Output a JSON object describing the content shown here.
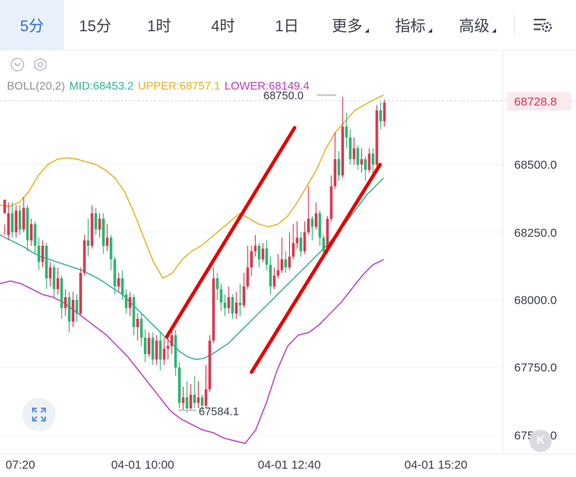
{
  "toolbar": {
    "tabs": [
      {
        "label": "5分",
        "active": true
      },
      {
        "label": "15分",
        "active": false
      },
      {
        "label": "1时",
        "active": false
      },
      {
        "label": "4时",
        "active": false
      },
      {
        "label": "1日",
        "active": false
      }
    ],
    "more_label": "更多",
    "indicator_label": "指标",
    "advanced_label": "高级",
    "settings_icon": "chart-settings-icon"
  },
  "indicator": {
    "name": "BOLL(20,2)",
    "mid": "MID:68453.2",
    "upper": "UPPER:68757.1",
    "lower": "LOWER:68149.4"
  },
  "price_axis": {
    "ticks": [
      "68500.0",
      "68250.0",
      "68000.0",
      "67750.0",
      "67500.0"
    ],
    "current_price": "68728.8"
  },
  "time_axis": {
    "labels": [
      "07:20",
      "04-01 10:00",
      "04-01 12:40",
      "04-01 15:20"
    ]
  },
  "annotations": {
    "high": "68750.0",
    "low": "67584.1"
  },
  "colors": {
    "accent": "#2d6fe0",
    "up": "#e0364f",
    "down": "#2bb673",
    "mid": "#2fb59a",
    "upper": "#e8b21f",
    "lower": "#c23ac4",
    "current_price": "#e0364f",
    "trend_lines": "#e60000"
  },
  "chart_data": {
    "type": "candlestick",
    "title": "",
    "interval": "5分",
    "ylim": [
      67450,
      68800
    ],
    "ticks": [
      67500,
      67750,
      68000,
      68250,
      68500
    ],
    "last_price": 68728.8,
    "high_marker": 68750.0,
    "low_marker": 67584.1,
    "x_labels": [
      "07:20",
      "04-01 10:00",
      "04-01 12:40",
      "04-01 15:20"
    ],
    "candles": [
      [
        68320,
        68370,
        68280,
        68240
      ],
      [
        68240,
        68320,
        68360,
        68220
      ],
      [
        68320,
        68250,
        68360,
        68230
      ],
      [
        68250,
        68330,
        68350,
        68230
      ],
      [
        68330,
        68260,
        68350,
        68240
      ],
      [
        68260,
        68340,
        68380,
        68250
      ],
      [
        68340,
        68220,
        68350,
        68180
      ],
      [
        68220,
        68280,
        68300,
        68200
      ],
      [
        68280,
        68200,
        68290,
        68170
      ],
      [
        68200,
        68140,
        68230,
        68110
      ],
      [
        68140,
        68200,
        68220,
        68120
      ],
      [
        68200,
        68080,
        68210,
        68040
      ],
      [
        68080,
        68120,
        68140,
        68050
      ],
      [
        68120,
        68040,
        68130,
        68010
      ],
      [
        68040,
        68080,
        68120,
        68020
      ],
      [
        68080,
        67970,
        68090,
        67930
      ],
      [
        67970,
        68010,
        68040,
        67940
      ],
      [
        68010,
        67920,
        68030,
        67880
      ],
      [
        67920,
        68000,
        68030,
        67900
      ],
      [
        68000,
        67950,
        68020,
        67920
      ],
      [
        67950,
        68100,
        68120,
        67940
      ],
      [
        68100,
        68220,
        68240,
        68090
      ],
      [
        68220,
        68200,
        68300,
        68160
      ],
      [
        68200,
        68320,
        68350,
        68190
      ],
      [
        68320,
        68260,
        68340,
        68240
      ],
      [
        68260,
        68300,
        68320,
        68230
      ],
      [
        68300,
        68200,
        68320,
        68170
      ],
      [
        68200,
        68230,
        68280,
        68180
      ],
      [
        68230,
        68150,
        68240,
        68110
      ],
      [
        68150,
        68050,
        68160,
        68020
      ],
      [
        68050,
        68080,
        68100,
        68030
      ],
      [
        68080,
        68020,
        68110,
        68000
      ],
      [
        68020,
        67970,
        68040,
        67950
      ],
      [
        67970,
        68010,
        68030,
        67940
      ],
      [
        68010,
        67900,
        68020,
        67870
      ],
      [
        67900,
        67930,
        67950,
        67850
      ],
      [
        67930,
        67860,
        67950,
        67830
      ],
      [
        67860,
        67800,
        67890,
        67770
      ],
      [
        67800,
        67860,
        67880,
        67790
      ],
      [
        67860,
        67780,
        67880,
        67760
      ],
      [
        67780,
        67850,
        67870,
        67760
      ],
      [
        67850,
        67780,
        67880,
        67740
      ],
      [
        67780,
        67820,
        67860,
        67760
      ],
      [
        67820,
        67830,
        67860,
        67780
      ],
      [
        67830,
        67870,
        67890,
        67800
      ],
      [
        67870,
        67750,
        67890,
        67720
      ],
      [
        67750,
        67620,
        67770,
        67600
      ],
      [
        67620,
        67640,
        67680,
        67590
      ],
      [
        67640,
        67600,
        67700,
        67584
      ],
      [
        67600,
        67650,
        67690,
        67590
      ],
      [
        67650,
        67620,
        67720,
        67600
      ],
      [
        67620,
        67640,
        67700,
        67600
      ],
      [
        67640,
        67610,
        67650,
        67590
      ],
      [
        67610,
        67670,
        67760,
        67600
      ],
      [
        67670,
        67850,
        67870,
        67660
      ],
      [
        67850,
        68080,
        68120,
        67840
      ],
      [
        68080,
        68040,
        68100,
        68000
      ],
      [
        68040,
        67990,
        68060,
        67960
      ],
      [
        67990,
        67970,
        68020,
        67940
      ],
      [
        67970,
        68010,
        68050,
        67950
      ],
      [
        68010,
        67950,
        68020,
        67930
      ],
      [
        67950,
        67990,
        68030,
        67930
      ],
      [
        67990,
        67980,
        68060,
        67940
      ],
      [
        67980,
        68050,
        68100,
        67970
      ],
      [
        68050,
        68120,
        68200,
        68040
      ],
      [
        68120,
        68180,
        68200,
        68090
      ],
      [
        68180,
        68200,
        68240,
        68160
      ],
      [
        68200,
        68150,
        68210,
        68120
      ],
      [
        68150,
        68190,
        68210,
        68140
      ],
      [
        68190,
        68130,
        68220,
        68110
      ],
      [
        68130,
        68050,
        68160,
        68020
      ],
      [
        68050,
        68090,
        68120,
        68040
      ],
      [
        68090,
        68110,
        68170,
        68080
      ],
      [
        68110,
        68150,
        68230,
        68100
      ],
      [
        68150,
        68120,
        68180,
        68100
      ],
      [
        68120,
        68160,
        68250,
        68110
      ],
      [
        68160,
        68210,
        68280,
        68150
      ],
      [
        68210,
        68230,
        68290,
        68190
      ],
      [
        68230,
        68180,
        68250,
        68160
      ],
      [
        68180,
        68250,
        68290,
        68170
      ],
      [
        68250,
        68300,
        68420,
        68240
      ],
      [
        68300,
        68270,
        68310,
        68220
      ],
      [
        68270,
        68320,
        68360,
        68260
      ],
      [
        68320,
        68230,
        68330,
        68200
      ],
      [
        68230,
        68180,
        68240,
        68160
      ],
      [
        68180,
        68300,
        68310,
        68170
      ],
      [
        68300,
        68420,
        68460,
        68290
      ],
      [
        68420,
        68520,
        68620,
        68410
      ],
      [
        68520,
        68460,
        68550,
        68440
      ],
      [
        68460,
        68640,
        68750,
        68450
      ],
      [
        68640,
        68600,
        68690,
        68560
      ],
      [
        68600,
        68520,
        68630,
        68500
      ],
      [
        68520,
        68560,
        68600,
        68500
      ],
      [
        68560,
        68500,
        68570,
        68480
      ],
      [
        68500,
        68520,
        68560,
        68470
      ],
      [
        68520,
        68480,
        68530,
        68440
      ],
      [
        68480,
        68540,
        68560,
        68470
      ],
      [
        68540,
        68500,
        68560,
        68460
      ],
      [
        68500,
        68700,
        68720,
        68490
      ],
      [
        68700,
        68660,
        68730,
        68630
      ],
      [
        68660,
        68728.8,
        68740,
        68640
      ]
    ],
    "series": [
      {
        "name": "MID",
        "values": [
          68240,
          68225,
          68210,
          68195,
          68175,
          68160,
          68150,
          68140,
          68130,
          68120,
          68110,
          68095,
          68080,
          68060,
          68040,
          68020,
          67990,
          67960,
          67930,
          67900,
          67870,
          67840,
          67810,
          67790,
          67780,
          67785,
          67800,
          67820,
          67840,
          67870,
          67900,
          67930,
          67960,
          67990,
          68020,
          68050,
          68080,
          68110,
          68140,
          68170,
          68200,
          68235,
          68270,
          68310,
          68350,
          68390,
          68420,
          68450
        ]
      },
      {
        "name": "UPPER",
        "values": [
          68350,
          68345,
          68360,
          68400,
          68460,
          68500,
          68520,
          68525,
          68520,
          68510,
          68500,
          68480,
          68450,
          68400,
          68320,
          68230,
          68140,
          68080,
          68100,
          68150,
          68180,
          68200,
          68230,
          68260,
          68290,
          68320,
          68300,
          68280,
          68270,
          68280,
          68310,
          68360,
          68420,
          68480,
          68560,
          68620,
          68660,
          68700,
          68720,
          68740,
          68757
        ]
      },
      {
        "name": "LOWER",
        "values": [
          68060,
          68070,
          68060,
          68040,
          68020,
          68010,
          67990,
          67960,
          67930,
          67900,
          67870,
          67830,
          67790,
          67740,
          67690,
          67640,
          67590,
          67560,
          67540,
          67520,
          67510,
          67490,
          67480,
          67470,
          67520,
          67620,
          67740,
          67830,
          67870,
          67880,
          67910,
          67950,
          67990,
          68040,
          68090,
          68130,
          68149
        ]
      }
    ],
    "trend_lines": [
      {
        "from": [
          67860,
          18
        ],
        "to": [
          68610,
          50
        ]
      },
      {
        "from": [
          67780,
          44
        ],
        "to": [
          68500,
          65
        ]
      }
    ]
  }
}
